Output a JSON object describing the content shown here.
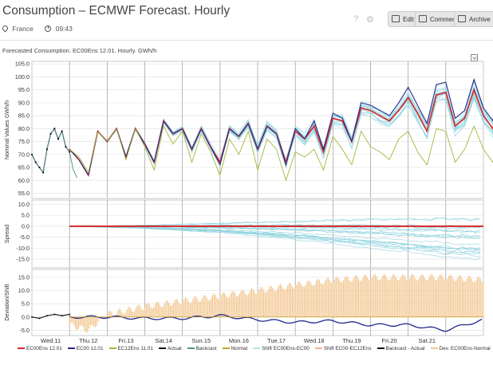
{
  "header": {
    "title": "Consumption – ECMWF Forecast. Hourly",
    "location": "France",
    "time": "09:43",
    "buttons": {
      "edit": "Edit",
      "comment": "Comment",
      "archive": "Archive"
    },
    "icons": [
      "question-icon",
      "gear-icon"
    ]
  },
  "subtitle": "Forecasted Consumption. EC00Ens 12.01. Hourly. GWh/h",
  "colors": {
    "ec00ens": "#d7262a",
    "ec00": "#24288a",
    "ec12ens": "#9fb83a",
    "actual": "#111111",
    "backcast": "#4f8f8f",
    "normal": "#c4a12c",
    "ensemble": "#8fd3df",
    "deviation": "#f2c48a",
    "shift_ec00": "#b8e2ee",
    "shift_ec12": "#f6b38e"
  },
  "chart_data": [
    {
      "type": "line",
      "ylabel": "Nominal Values GWh/h",
      "yticks": [
        "105.0",
        "100.0",
        "95.0",
        "90.0",
        "85.0",
        "80.0",
        "75.0",
        "70.0",
        "65.0",
        "60.0",
        "55.0"
      ],
      "ylim": [
        53,
        106
      ],
      "xlim": [
        0,
        12
      ],
      "grid": true,
      "series": [
        {
          "name": "EC00Ens 12.01",
          "start": 1.0,
          "x_step": 0.25,
          "values": [
            72,
            68,
            62,
            79,
            75,
            80,
            69,
            80,
            74,
            67,
            83,
            78,
            80,
            72,
            80,
            73,
            67,
            80,
            77,
            82,
            72,
            81,
            78,
            67,
            79,
            76,
            81,
            71,
            84,
            83,
            75,
            88,
            87,
            85,
            83,
            87,
            92,
            86,
            79,
            93,
            94,
            81,
            84,
            95,
            85,
            80,
            96,
            96,
            87,
            86,
            98,
            88,
            79,
            90,
            87,
            76,
            83,
            92,
            85,
            79,
            85
          ]
        },
        {
          "name": "EC00 12.01",
          "start": 1.0,
          "x_step": 0.25,
          "values": [
            72,
            68,
            62,
            79,
            75,
            80,
            69,
            80,
            74,
            67,
            83,
            78,
            80,
            72,
            80,
            73,
            66,
            80,
            77,
            82,
            72,
            81,
            78,
            66,
            80,
            76,
            83,
            72,
            86,
            84,
            75,
            90,
            89,
            87,
            85,
            90,
            96,
            89,
            82,
            97,
            98,
            84,
            87,
            99,
            88,
            83,
            100,
            100,
            90,
            89,
            100,
            90,
            80,
            92,
            88,
            77,
            85,
            93,
            86,
            80,
            86
          ]
        },
        {
          "name": "EC12Ens 11.01",
          "start": 1.0,
          "x_step": 0.25,
          "values": [
            72,
            69,
            63,
            79,
            75,
            80,
            68,
            80,
            73,
            64,
            81,
            74,
            79,
            67,
            78,
            71,
            62,
            76,
            70,
            79,
            64,
            76,
            72,
            60,
            71,
            69,
            72,
            64,
            77,
            72,
            66,
            79,
            73,
            71,
            68,
            76,
            79,
            71,
            66,
            80,
            79,
            67,
            72,
            81,
            72,
            67,
            82,
            80,
            73,
            72,
            82,
            72,
            66,
            75,
            72,
            65,
            71,
            77,
            69,
            66,
            71
          ]
        },
        {
          "name": "Actual",
          "x": [
            0.0,
            0.1,
            0.2,
            0.3,
            0.4,
            0.5,
            0.6,
            0.7,
            0.8,
            0.9,
            1.0
          ],
          "values": [
            70,
            67,
            65,
            63,
            72,
            78,
            80,
            76,
            79,
            73,
            71
          ]
        },
        {
          "name": "Backcast",
          "x": [
            0.0,
            0.1,
            0.2,
            0.3,
            0.4,
            0.5,
            0.6,
            0.7,
            0.8,
            0.9,
            1.0,
            1.1,
            1.2
          ],
          "values": [
            70,
            67,
            65,
            63,
            72,
            78,
            80,
            76,
            79,
            73,
            71,
            64,
            61
          ]
        }
      ],
      "ensemble_band": {
        "name": "Ensemble members",
        "start": 1.0,
        "x_step": 0.25,
        "spread_start": 0,
        "spread_end": 12
      }
    },
    {
      "type": "line",
      "ylabel": "Spread",
      "yticks": [
        "10.0",
        "5.0",
        "0.0",
        "-5.0",
        "-10.0",
        "-15.0"
      ],
      "ylim": [
        -19,
        12
      ],
      "xlim": [
        0,
        12
      ],
      "grid": true,
      "series": [
        {
          "name": "EC00Ens 12.01",
          "x": [
            1.0,
            12.0
          ],
          "values": [
            0,
            0
          ]
        },
        {
          "name": "Spread upper",
          "x": [
            1.0,
            3,
            5,
            7,
            9,
            11,
            12.0
          ],
          "values": [
            0,
            0.5,
            1.5,
            2.5,
            3.5,
            4,
            4
          ]
        },
        {
          "name": "Spread lower",
          "x": [
            1.0,
            3,
            5,
            7,
            9,
            11,
            12.0
          ],
          "values": [
            0,
            -1,
            -3,
            -6,
            -10,
            -14,
            -15
          ]
        }
      ]
    },
    {
      "type": "area",
      "ylabel": "Deviation/Shift",
      "yticks": [
        "15.0",
        "10.0",
        "5.0",
        "0.0",
        "-5.0"
      ],
      "ylim": [
        -7,
        18
      ],
      "xlim": [
        0,
        12
      ],
      "grid": true,
      "series": [
        {
          "name": "Dev. EC00Ens-Normal",
          "x": [
            1.0,
            1.5,
            2,
            3,
            4,
            5,
            6,
            7,
            8,
            9,
            10,
            11,
            12
          ],
          "values": [
            -3,
            -5,
            1,
            4,
            6,
            8,
            10,
            12,
            14,
            15,
            15,
            15,
            14
          ]
        },
        {
          "name": "Shift EC00Ens-EC00",
          "x": [
            1.0,
            2,
            3,
            4,
            5,
            6,
            7,
            8,
            9,
            10,
            11,
            11.5,
            12
          ],
          "values": [
            0,
            0,
            -0.5,
            -0.5,
            0.5,
            -1,
            -2,
            -1.5,
            -3,
            -3,
            -5,
            -3,
            -1
          ]
        },
        {
          "name": "Backcast - Actual",
          "x": [
            0.0,
            0.2,
            0.4,
            0.6,
            0.8,
            1.0
          ],
          "values": [
            0,
            -0.5,
            0.5,
            1,
            0.5,
            1
          ]
        }
      ]
    }
  ],
  "xaxis_labels": [
    "Wed.11",
    "Thu.12",
    "Fri.13",
    "Sat.14",
    "Sun.15",
    "Mon.16",
    "Tue.17",
    "Wed.18",
    "Thu.19",
    "Fri.20",
    "Sat.21"
  ],
  "legend": [
    {
      "label": "EC00Ens 12.01",
      "color": "#d7262a"
    },
    {
      "label": "EC00 12.01",
      "color": "#24288a"
    },
    {
      "label": "EC12Ens 11.01",
      "color": "#9fb83a"
    },
    {
      "label": "Actual",
      "color": "#111111"
    },
    {
      "label": "Backcast",
      "color": "#4f8f8f"
    },
    {
      "label": "Normal",
      "color": "#c4a12c"
    },
    {
      "label": "Shift EC00Ens-EC00",
      "color": "#b8e2ee"
    },
    {
      "label": "Shift EC00-EC12Ens",
      "color": "#f6b38e"
    },
    {
      "label": "Backcast - Actual",
      "color": "#111111"
    },
    {
      "label": "Dev. EC00Ens-Normal",
      "color": "#f2c48a"
    }
  ]
}
